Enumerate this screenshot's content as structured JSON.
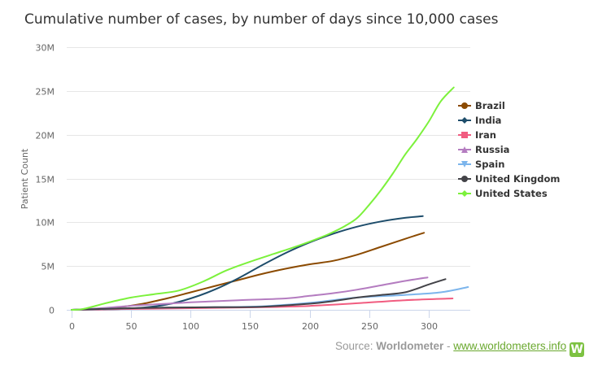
{
  "chart_data": {
    "type": "line",
    "title": "Cumulative number of cases, by number of days since 10,000 cases",
    "xlabel": "",
    "ylabel": "Patient Count",
    "xlim": [
      0,
      333
    ],
    "ylim": [
      0,
      30000000
    ],
    "x_ticks": [
      0,
      50,
      100,
      150,
      200,
      250,
      300
    ],
    "x_tick_labels": [
      "0",
      "50",
      "100",
      "150",
      "200",
      "250",
      "300"
    ],
    "y_ticks": [
      0,
      5000000,
      10000000,
      15000000,
      20000000,
      25000000,
      30000000
    ],
    "y_tick_labels": [
      "0",
      "5M",
      "10M",
      "15M",
      "20M",
      "25M",
      "30M"
    ],
    "grid": "horizontal",
    "legend_position": "right",
    "series": [
      {
        "name": "Brazil",
        "color": "#8b4a00",
        "marker": "circle",
        "x": [
          0,
          20,
          40,
          60,
          80,
          100,
          120,
          140,
          160,
          180,
          200,
          220,
          240,
          260,
          280,
          296
        ],
        "y": [
          0,
          100000,
          300000,
          700000,
          1300000,
          2000000,
          2700000,
          3400000,
          4100000,
          4700000,
          5200000,
          5600000,
          6300000,
          7200000,
          8100000,
          8800000
        ]
      },
      {
        "name": "India",
        "color": "#1e4d6b",
        "marker": "diamond",
        "x": [
          0,
          20,
          40,
          60,
          80,
          100,
          120,
          140,
          160,
          180,
          200,
          220,
          240,
          260,
          280,
          295
        ],
        "y": [
          0,
          20000,
          80000,
          250000,
          600000,
          1300000,
          2300000,
          3600000,
          5100000,
          6500000,
          7700000,
          8700000,
          9500000,
          10100000,
          10500000,
          10700000
        ]
      },
      {
        "name": "Iran",
        "color": "#f15c80",
        "marker": "square",
        "x": [
          0,
          40,
          80,
          120,
          160,
          200,
          240,
          280,
          320
        ],
        "y": [
          0,
          80000,
          150000,
          220000,
          300000,
          450000,
          750000,
          1100000,
          1300000
        ]
      },
      {
        "name": "Russia",
        "color": "#b47cc0",
        "marker": "triangle",
        "x": [
          0,
          20,
          40,
          60,
          80,
          100,
          140,
          180,
          200,
          220,
          240,
          260,
          280,
          299
        ],
        "y": [
          0,
          150000,
          350000,
          550000,
          700000,
          850000,
          1100000,
          1300000,
          1600000,
          1900000,
          2300000,
          2800000,
          3300000,
          3700000
        ]
      },
      {
        "name": "Spain",
        "color": "#7cb5ec",
        "marker": "triangle-down",
        "x": [
          0,
          40,
          80,
          120,
          160,
          200,
          240,
          280,
          310,
          333
        ],
        "y": [
          0,
          150000,
          250000,
          300000,
          400000,
          800000,
          1400000,
          1700000,
          2000000,
          2600000
        ]
      },
      {
        "name": "United Kingdom",
        "color": "#434348",
        "marker": "circle",
        "x": [
          0,
          40,
          80,
          120,
          160,
          200,
          220,
          240,
          260,
          280,
          300,
          314
        ],
        "y": [
          0,
          150000,
          250000,
          300000,
          350000,
          700000,
          1000000,
          1400000,
          1700000,
          2000000,
          2900000,
          3500000
        ]
      },
      {
        "name": "United States",
        "color": "#7cf13c",
        "marker": "diamond",
        "x": [
          0,
          10,
          30,
          50,
          70,
          90,
          110,
          130,
          150,
          170,
          190,
          210,
          220,
          230,
          240,
          250,
          260,
          270,
          280,
          290,
          300,
          310,
          321
        ],
        "y": [
          0,
          100000,
          800000,
          1400000,
          1800000,
          2200000,
          3200000,
          4500000,
          5500000,
          6400000,
          7300000,
          8300000,
          8900000,
          9600000,
          10500000,
          12000000,
          13700000,
          15600000,
          17700000,
          19500000,
          21500000,
          23800000,
          25400000
        ]
      }
    ]
  },
  "footer": {
    "source_prefix": "Source: ",
    "source_name": "Worldometer",
    "separator": " - ",
    "link_text": "www.worldometers.info",
    "logo_letter": "W"
  }
}
